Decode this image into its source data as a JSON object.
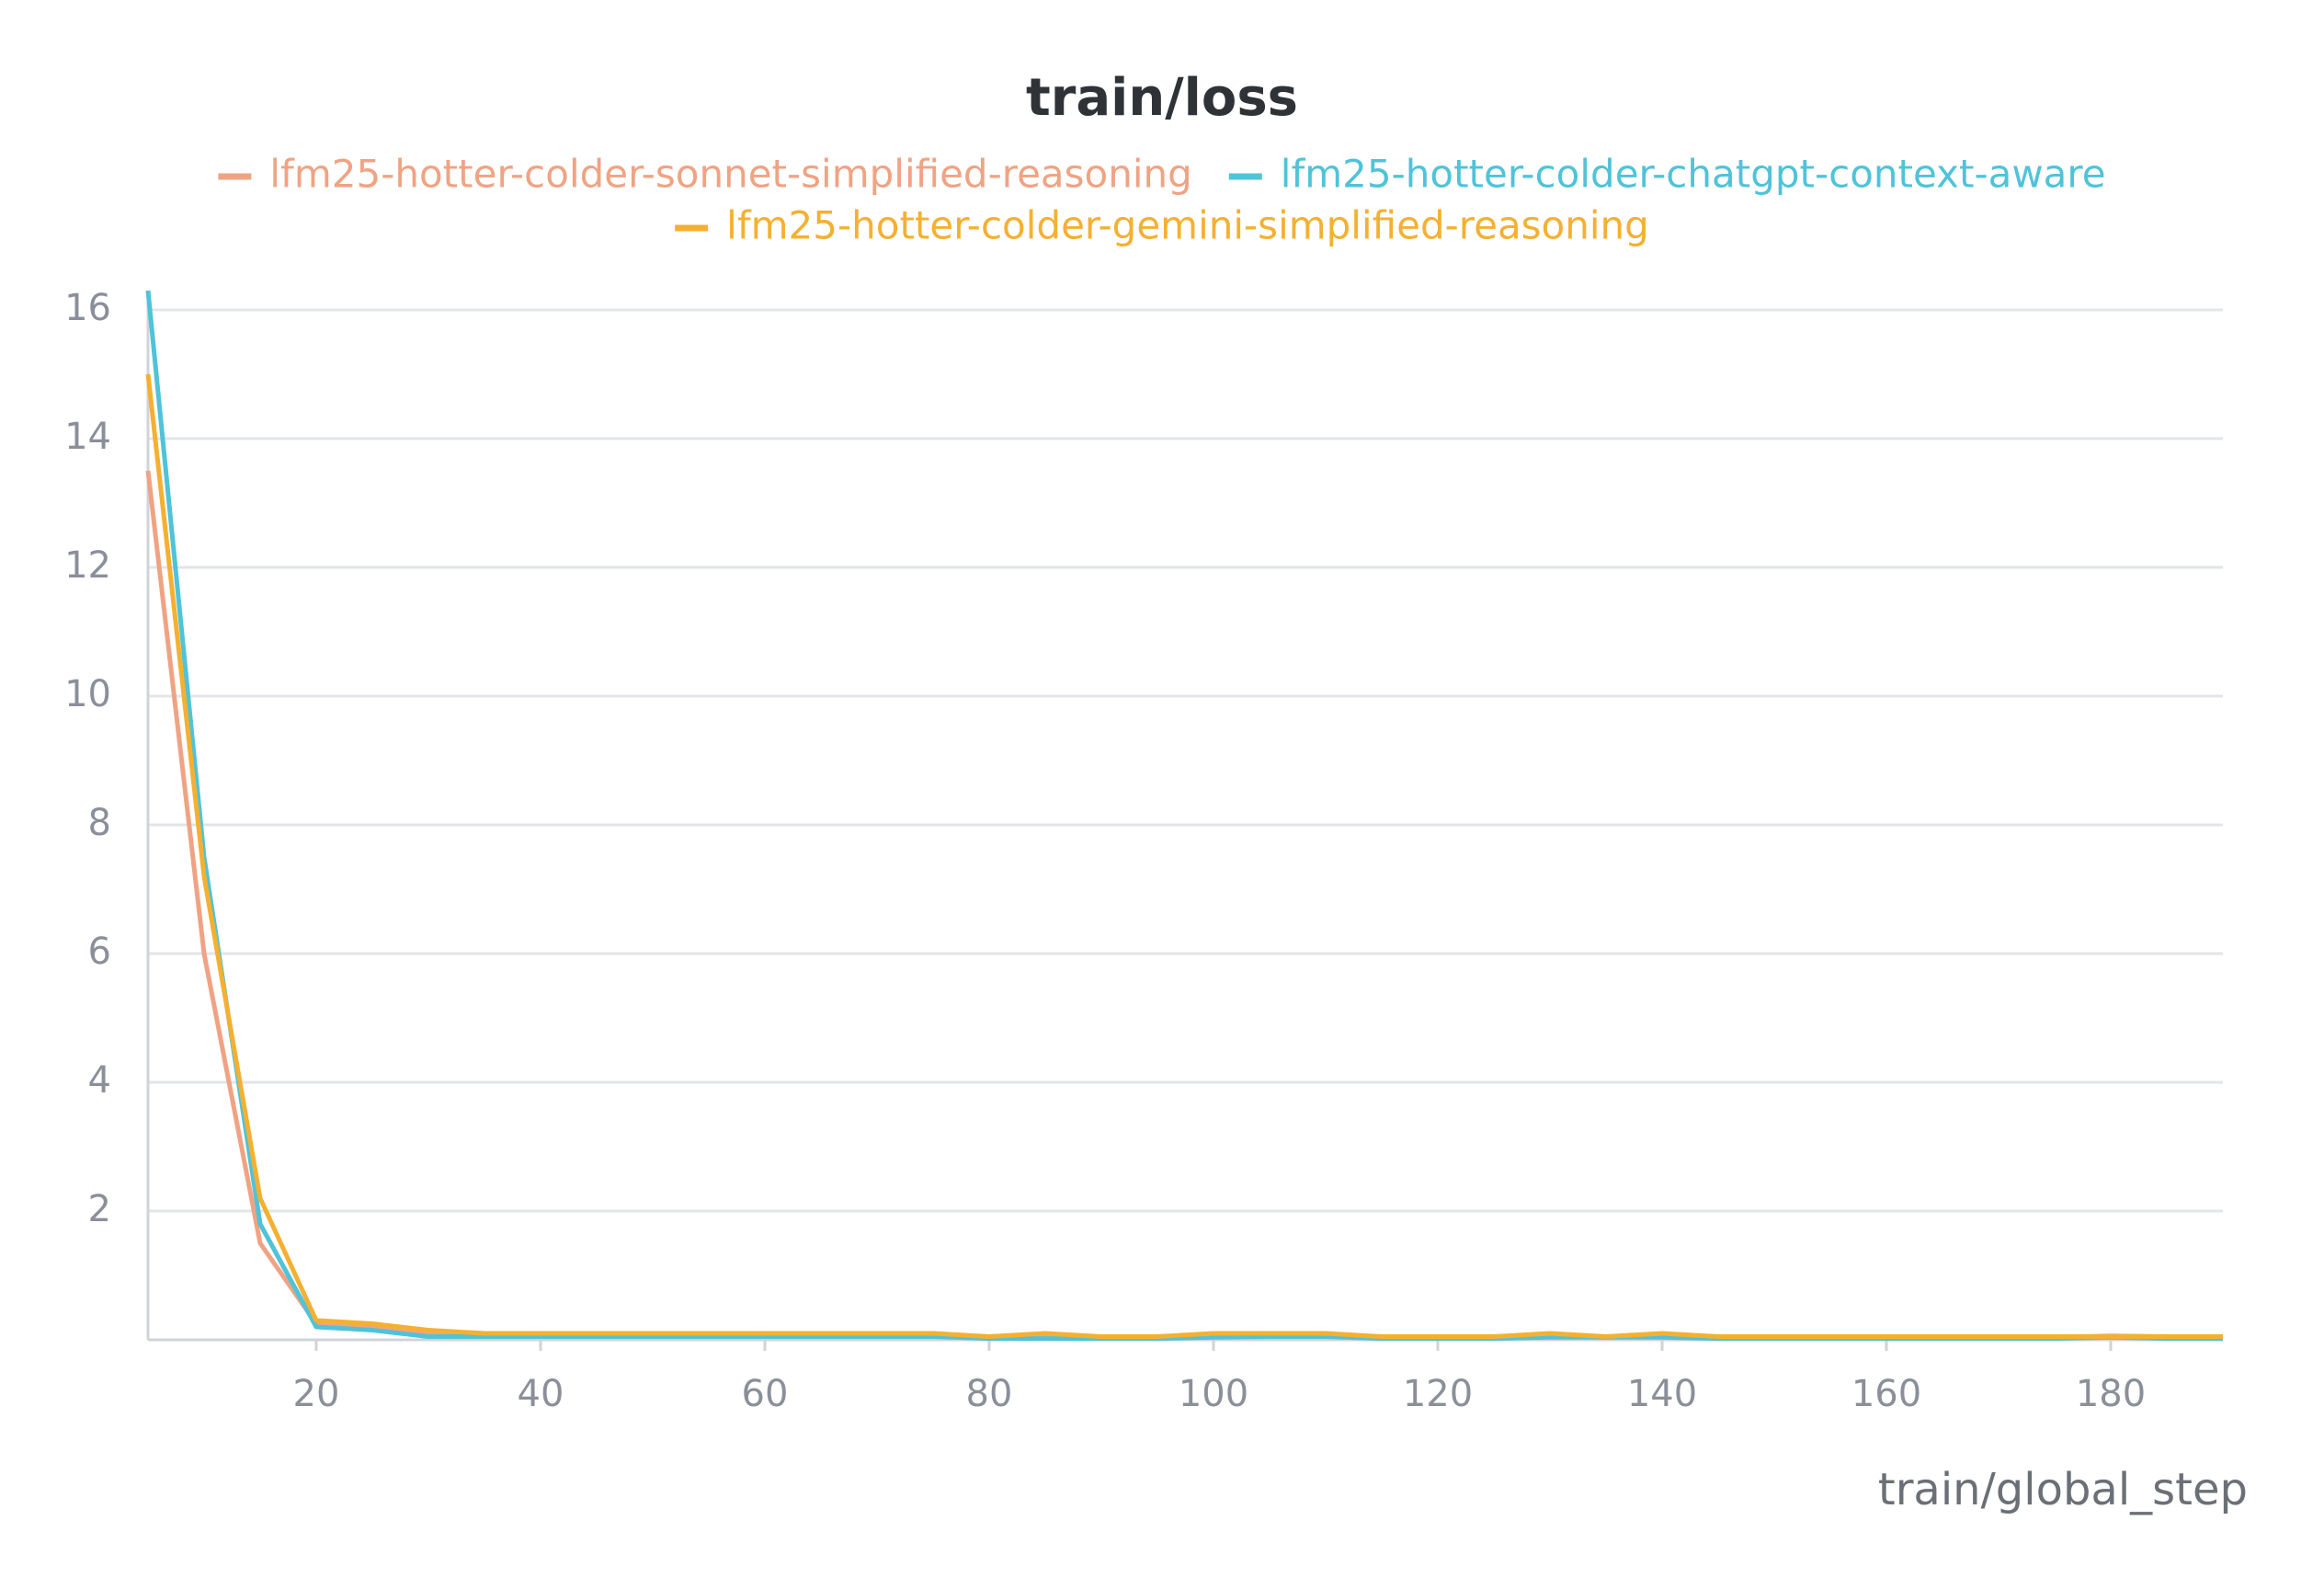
{
  "chart_data": {
    "type": "line",
    "title": "train/loss",
    "x_label": "train/global_step",
    "x": [
      5,
      10,
      15,
      20,
      25,
      30,
      35,
      40,
      45,
      50,
      55,
      60,
      65,
      70,
      75,
      80,
      85,
      90,
      95,
      100,
      105,
      110,
      115,
      120,
      125,
      130,
      135,
      140,
      145,
      150,
      155,
      160,
      165,
      170,
      175,
      180,
      185,
      190
    ],
    "series": [
      {
        "name": "lfm25-hotter-colder-sonnet-simplified-reasoning",
        "color": "#f0a383",
        "values": [
          13.5,
          6,
          1.5,
          0.25,
          0.2,
          0.12,
          0.1,
          0.08,
          0.08,
          0.08,
          0.07,
          0.07,
          0.05,
          0.06,
          0.06,
          0.05,
          0.08,
          0.04,
          0.05,
          0.07,
          0.08,
          0.06,
          0.05,
          0.05,
          0.05,
          0.06,
          0.04,
          0.07,
          0.04,
          0.05,
          0.04,
          0.04,
          0.04,
          0.05,
          0.04,
          0.06,
          0.05,
          0.05
        ]
      },
      {
        "name": "lfm25-hotter-colder-chatgpt-context-aware",
        "color": "#4fc3d9",
        "values": [
          16.3,
          7.5,
          1.8,
          0.2,
          0.15,
          0.05,
          0.05,
          0.05,
          0.05,
          0.05,
          0.05,
          0.05,
          0.05,
          0.05,
          0.05,
          0.02,
          0.02,
          0.02,
          0.02,
          0.04,
          0.05,
          0.05,
          0.02,
          0.02,
          0.02,
          0.04,
          0.04,
          0.04,
          0.02,
          0.02,
          0.02,
          0.02,
          0.02,
          0.02,
          0.02,
          0.04,
          0.02,
          0.02
        ]
      },
      {
        "name": "lfm25-hotter-colder-gemini-simplified-reasoning",
        "color": "#f5b031",
        "values": [
          15,
          7.2,
          2.2,
          0.3,
          0.25,
          0.15,
          0.1,
          0.1,
          0.1,
          0.1,
          0.1,
          0.1,
          0.1,
          0.1,
          0.1,
          0.05,
          0.1,
          0.05,
          0.05,
          0.1,
          0.1,
          0.1,
          0.05,
          0.05,
          0.05,
          0.1,
          0.05,
          0.1,
          0.05,
          0.05,
          0.05,
          0.05,
          0.05,
          0.05,
          0.05,
          0.05,
          0.05,
          0.05
        ]
      }
    ],
    "xlim": [
      5,
      190
    ],
    "ylim": [
      0,
      16.3
    ],
    "xticks": [
      20,
      40,
      60,
      80,
      100,
      120,
      140,
      160,
      180
    ],
    "yticks": [
      2,
      4,
      6,
      8,
      10,
      12,
      14,
      16
    ],
    "grid": true
  }
}
